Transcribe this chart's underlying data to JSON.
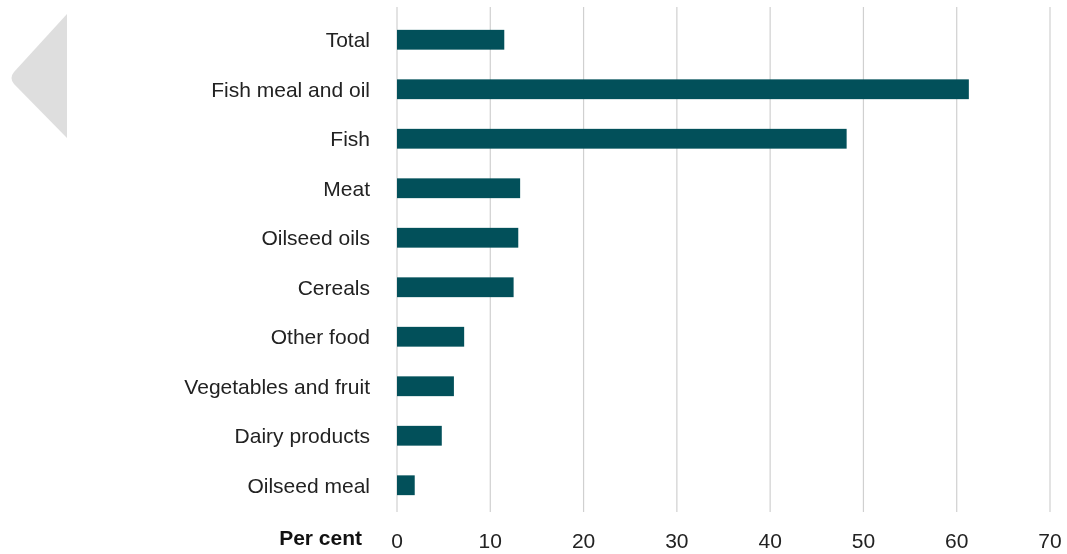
{
  "chart_data": {
    "type": "bar",
    "orientation": "horizontal",
    "xlabel": "Per cent",
    "categories": [
      "Total",
      "Fish meal and oil",
      "Fish",
      "Meat",
      "Oilseed oils",
      "Cereals",
      "Other food",
      "Vegetables and fruit",
      "Dairy products",
      "Oilseed meal"
    ],
    "values": [
      11.5,
      61.3,
      48.2,
      13.2,
      13.0,
      12.5,
      7.2,
      6.1,
      4.8,
      1.9
    ],
    "color": "#02505a",
    "xlim": [
      0,
      70
    ],
    "xticks": [
      0,
      10,
      20,
      30,
      40,
      50,
      60,
      70
    ],
    "grid": "x"
  }
}
